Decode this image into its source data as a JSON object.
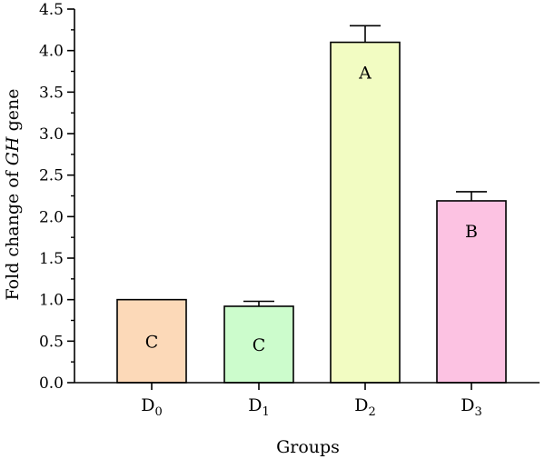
{
  "chart_data": {
    "type": "bar",
    "categories": [
      {
        "base": "D",
        "sub": "0"
      },
      {
        "base": "D",
        "sub": "1"
      },
      {
        "base": "D",
        "sub": "2"
      },
      {
        "base": "D",
        "sub": "3"
      }
    ],
    "values": [
      1.0,
      0.92,
      4.1,
      2.19
    ],
    "errors": [
      0.0,
      0.06,
      0.2,
      0.11
    ],
    "significance_letters": [
      "C",
      "C",
      "A",
      "B"
    ],
    "bar_colors": [
      "#fcd9b8",
      "#ccfccc",
      "#f2fcc2",
      "#fcc2e2"
    ],
    "title": "",
    "xlabel": "Groups",
    "ylabel": {
      "prefix": "Fold change of ",
      "italic": "GH",
      "suffix": " gene"
    },
    "ylim": [
      0,
      4.5
    ],
    "yticks": [
      "0.0",
      "0.5",
      "1.0",
      "1.5",
      "2.0",
      "2.5",
      "3.0",
      "3.5",
      "4.0",
      "4.5"
    ],
    "grid": false,
    "legend": "none"
  }
}
